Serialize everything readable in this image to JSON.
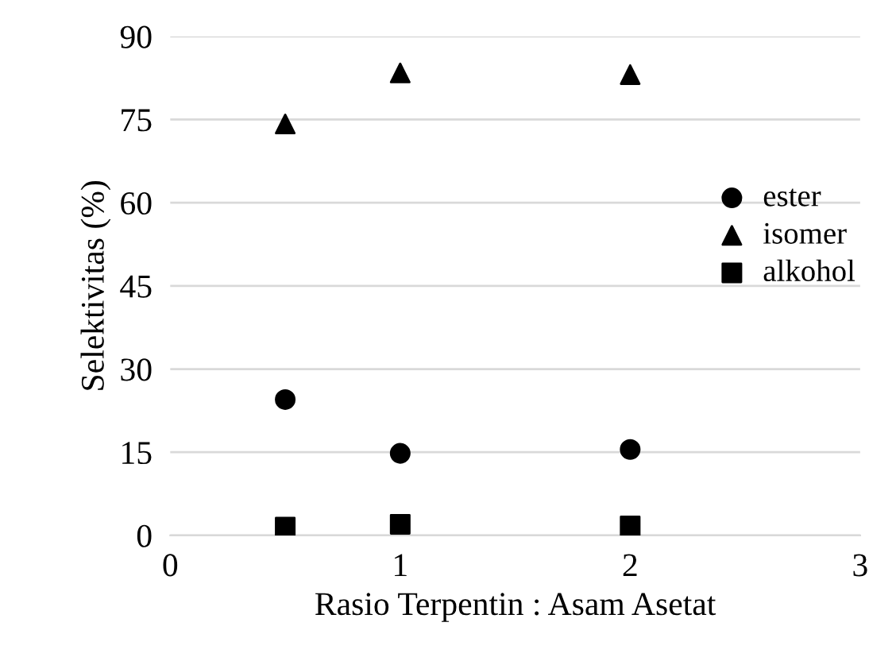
{
  "chart_data": {
    "type": "scatter",
    "xlabel": "Rasio Terpentin : Asam Asetat",
    "ylabel": "Selektivitas (%)",
    "xlim": [
      0,
      3
    ],
    "xticks": [
      0,
      1,
      2,
      3
    ],
    "ylim": [
      0,
      90
    ],
    "yticks": [
      0,
      15,
      30,
      45,
      60,
      75,
      90
    ],
    "grid": "y",
    "legend": "right",
    "series": [
      {
        "name": "ester",
        "color": "#000000",
        "marker": "circle",
        "x": [
          0.5,
          1,
          2
        ],
        "values": [
          24.5,
          14.8,
          15.5
        ]
      },
      {
        "name": "isomer",
        "color": "#000000",
        "marker": "triangle",
        "x": [
          0.5,
          1,
          2
        ],
        "values": [
          74.2,
          83.4,
          83.1
        ]
      },
      {
        "name": "alkohol",
        "color": "#000000",
        "marker": "square",
        "x": [
          0.5,
          1,
          2
        ],
        "values": [
          1.5,
          2.0,
          1.7
        ]
      }
    ]
  }
}
